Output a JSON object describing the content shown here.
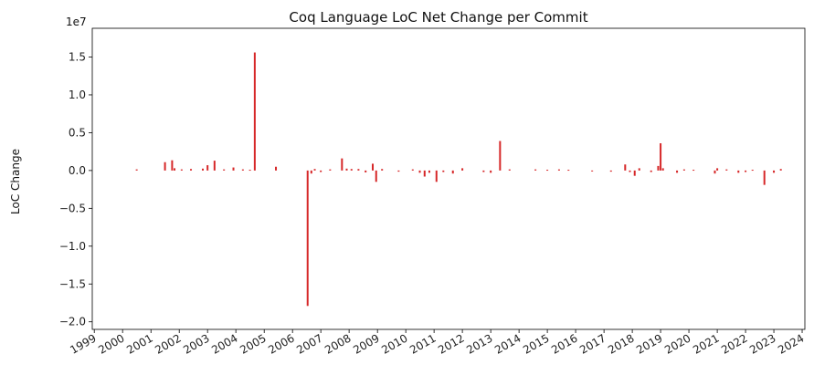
{
  "chart_data": {
    "type": "bar",
    "title": "Coq Language LoC Net Change per Commit",
    "xlabel": "",
    "ylabel": "LoC Change",
    "y_multiplier_label": "1e7",
    "ylim": [
      -21000000,
      18800000
    ],
    "xlim": [
      "1998-12-06",
      "2024-02-05"
    ],
    "y_ticks": [
      -20000000,
      -15000000,
      -10000000,
      -5000000,
      0,
      5000000,
      10000000,
      15000000
    ],
    "y_tick_labels": [
      "−2.0",
      "−1.5",
      "−1.0",
      "−0.5",
      "0.0",
      "0.5",
      "1.0",
      "1.5"
    ],
    "x_tick_labels": [
      "1999",
      "2000",
      "2001",
      "2002",
      "2003",
      "2004",
      "2005",
      "2006",
      "2007",
      "2008",
      "2009",
      "2010",
      "2011",
      "2012",
      "2013",
      "2014",
      "2015",
      "2016",
      "2017",
      "2018",
      "2019",
      "2020",
      "2021",
      "2022",
      "2023",
      "2024"
    ],
    "bar_color": "#d62728",
    "grid": false,
    "series": [
      {
        "values": [
          [
            "2000-07-01",
            150000
          ],
          [
            "2001-07-01",
            1100000
          ],
          [
            "2001-10-01",
            1350000
          ],
          [
            "2001-11-01",
            300000
          ],
          [
            "2002-02-01",
            150000
          ],
          [
            "2002-06-01",
            200000
          ],
          [
            "2002-11-01",
            250000
          ],
          [
            "2003-01-01",
            700000
          ],
          [
            "2003-04-01",
            1300000
          ],
          [
            "2003-08-01",
            150000
          ],
          [
            "2003-12-01",
            400000
          ],
          [
            "2004-04-01",
            150000
          ],
          [
            "2004-07-01",
            100000
          ],
          [
            "2004-09-01",
            15600000
          ],
          [
            "2005-06-01",
            500000
          ],
          [
            "2006-07-15",
            -17900000
          ],
          [
            "2006-09-01",
            -400000
          ],
          [
            "2006-10-15",
            200000
          ],
          [
            "2007-01-01",
            -200000
          ],
          [
            "2007-05-01",
            150000
          ],
          [
            "2007-10-01",
            1600000
          ],
          [
            "2007-12-01",
            250000
          ],
          [
            "2008-02-01",
            200000
          ],
          [
            "2008-05-01",
            200000
          ],
          [
            "2008-08-01",
            -250000
          ],
          [
            "2008-11-01",
            900000
          ],
          [
            "2008-12-15",
            -1500000
          ],
          [
            "2009-03-01",
            200000
          ],
          [
            "2009-10-01",
            -150000
          ],
          [
            "2010-04-01",
            150000
          ],
          [
            "2010-07-01",
            -300000
          ],
          [
            "2010-09-01",
            -800000
          ],
          [
            "2010-11-01",
            -300000
          ],
          [
            "2011-02-01",
            -1500000
          ],
          [
            "2011-05-01",
            -200000
          ],
          [
            "2011-09-01",
            -400000
          ],
          [
            "2012-01-01",
            300000
          ],
          [
            "2012-10-01",
            -200000
          ],
          [
            "2013-01-01",
            -300000
          ],
          [
            "2013-05-01",
            3900000
          ],
          [
            "2013-09-01",
            150000
          ],
          [
            "2014-08-01",
            150000
          ],
          [
            "2015-01-01",
            100000
          ],
          [
            "2015-06-01",
            150000
          ],
          [
            "2015-10-01",
            100000
          ],
          [
            "2016-08-01",
            -100000
          ],
          [
            "2017-04-01",
            -150000
          ],
          [
            "2017-10-01",
            800000
          ],
          [
            "2017-12-01",
            -200000
          ],
          [
            "2018-02-01",
            -700000
          ],
          [
            "2018-04-01",
            300000
          ],
          [
            "2018-09-01",
            -200000
          ],
          [
            "2018-12-01",
            600000
          ],
          [
            "2019-01-01",
            3600000
          ],
          [
            "2019-02-01",
            300000
          ],
          [
            "2019-08-01",
            -300000
          ],
          [
            "2019-11-01",
            150000
          ],
          [
            "2020-03-01",
            100000
          ],
          [
            "2020-12-01",
            -400000
          ],
          [
            "2021-01-01",
            300000
          ],
          [
            "2021-05-01",
            150000
          ],
          [
            "2021-10-01",
            -300000
          ],
          [
            "2022-01-01",
            -200000
          ],
          [
            "2022-04-01",
            100000
          ],
          [
            "2022-09-01",
            -1900000
          ],
          [
            "2023-01-01",
            -300000
          ],
          [
            "2023-04-01",
            200000
          ]
        ]
      }
    ]
  }
}
